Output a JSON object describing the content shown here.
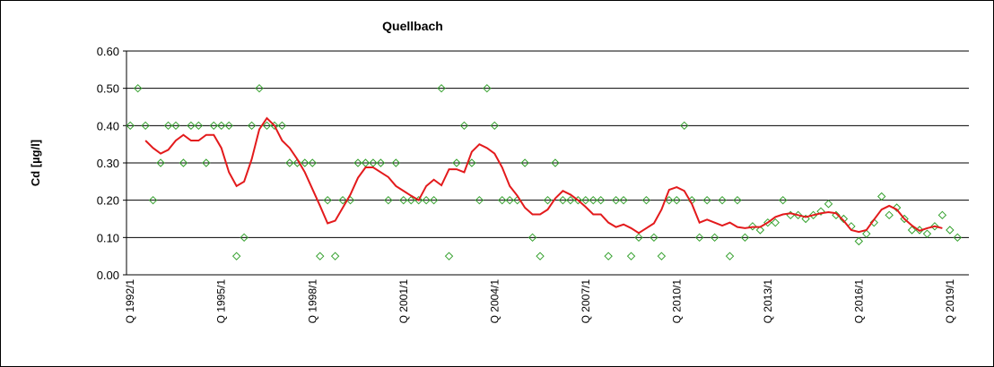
{
  "chart_data": {
    "type": "line",
    "title": "Quellbach",
    "y_label": "Cd [µg/l]",
    "categories": [
      "Q 1992/1",
      null,
      null,
      null,
      null,
      null,
      null,
      null,
      null,
      null,
      null,
      null,
      "Q 1995/1",
      null,
      null,
      null,
      null,
      null,
      null,
      null,
      null,
      null,
      null,
      null,
      "Q 1998/1",
      null,
      null,
      null,
      null,
      null,
      null,
      null,
      null,
      null,
      null,
      null,
      "Q 2001/1",
      null,
      null,
      null,
      null,
      null,
      null,
      null,
      null,
      null,
      null,
      null,
      "Q 2004/1",
      null,
      null,
      null,
      null,
      null,
      null,
      null,
      null,
      null,
      null,
      null,
      "Q 2007/1",
      null,
      null,
      null,
      null,
      null,
      null,
      null,
      null,
      null,
      null,
      null,
      "Q 2010/1",
      null,
      null,
      null,
      null,
      null,
      null,
      null,
      null,
      null,
      null,
      null,
      "Q 2013/1",
      null,
      null,
      null,
      null,
      null,
      null,
      null,
      null,
      null,
      null,
      null,
      "Q 2016/1",
      null,
      null,
      null,
      null,
      null,
      null,
      null,
      null,
      null,
      null,
      null,
      "Q 2019/1",
      null,
      null
    ],
    "series": [
      {
        "kind": "scatter",
        "color": "#33a02c",
        "values": [
          0.4,
          0.5,
          0.4,
          0.2,
          0.3,
          0.4,
          0.4,
          0.3,
          0.4,
          0.4,
          0.3,
          0.4,
          0.4,
          0.4,
          0.05,
          0.1,
          0.4,
          0.5,
          0.4,
          0.4,
          0.4,
          0.3,
          0.3,
          0.3,
          0.3,
          0.05,
          0.2,
          0.05,
          0.2,
          0.2,
          0.3,
          0.3,
          0.3,
          0.3,
          0.2,
          0.3,
          0.2,
          0.2,
          0.2,
          0.2,
          0.2,
          0.5,
          0.05,
          0.3,
          0.4,
          0.3,
          0.2,
          0.5,
          0.4,
          0.2,
          0.2,
          0.2,
          0.3,
          0.1,
          0.05,
          0.2,
          0.3,
          0.2,
          0.2,
          0.2,
          0.2,
          0.2,
          0.2,
          0.05,
          0.2,
          0.2,
          0.05,
          0.1,
          0.2,
          0.1,
          0.05,
          0.2,
          0.2,
          0.4,
          0.2,
          0.1,
          0.2,
          0.1,
          0.2,
          0.05,
          0.2,
          0.1,
          0.13,
          0.12,
          0.14,
          0.14,
          0.2,
          0.16,
          0.16,
          0.15,
          0.16,
          0.17,
          0.19,
          0.16,
          0.15,
          0.13,
          0.09,
          0.11,
          0.14,
          0.21,
          0.16,
          0.18,
          0.15,
          0.12,
          0.12,
          0.11,
          0.13,
          0.16,
          0.12,
          0.1,
          null
        ]
      },
      {
        "kind": "line",
        "color": "#e31a1c",
        "values": [
          null,
          null,
          0.36,
          0.34,
          0.325,
          0.335,
          0.36,
          0.375,
          0.36,
          0.36,
          0.375,
          0.375,
          0.34,
          0.275,
          0.238,
          0.25,
          0.31,
          0.39,
          0.42,
          0.4,
          0.36,
          0.34,
          0.31,
          0.275,
          0.23,
          0.185,
          0.138,
          0.145,
          0.18,
          0.215,
          0.26,
          0.288,
          0.288,
          0.275,
          0.262,
          0.238,
          0.225,
          0.212,
          0.2,
          0.238,
          0.255,
          0.24,
          0.283,
          0.283,
          0.275,
          0.33,
          0.35,
          0.34,
          0.325,
          0.288,
          0.238,
          0.212,
          0.18,
          0.162,
          0.162,
          0.175,
          0.205,
          0.225,
          0.215,
          0.2,
          0.182,
          0.162,
          0.162,
          0.14,
          0.128,
          0.135,
          0.125,
          0.112,
          0.125,
          0.138,
          0.175,
          0.228,
          0.235,
          0.225,
          0.19,
          0.14,
          0.148,
          0.14,
          0.132,
          0.14,
          0.128,
          0.125,
          0.128,
          0.128,
          0.14,
          0.155,
          0.162,
          0.165,
          0.16,
          0.155,
          0.16,
          0.165,
          0.168,
          0.165,
          0.145,
          0.12,
          0.115,
          0.12,
          0.148,
          0.175,
          0.185,
          0.175,
          0.15,
          0.132,
          0.118,
          0.125,
          0.13,
          0.125,
          null,
          null,
          null
        ]
      }
    ],
    "ylim": [
      0,
      0.6
    ],
    "yticks": [
      {
        "value": 0,
        "label": "0.00"
      },
      {
        "value": 0.1,
        "label": "0.10"
      },
      {
        "value": 0.2,
        "label": "0.20"
      },
      {
        "value": 0.3,
        "label": "0.30"
      },
      {
        "value": 0.4,
        "label": "0.40"
      },
      {
        "value": 0.5,
        "label": "0.50"
      },
      {
        "value": 0.6,
        "label": "0.60"
      }
    ],
    "grid": true
  }
}
